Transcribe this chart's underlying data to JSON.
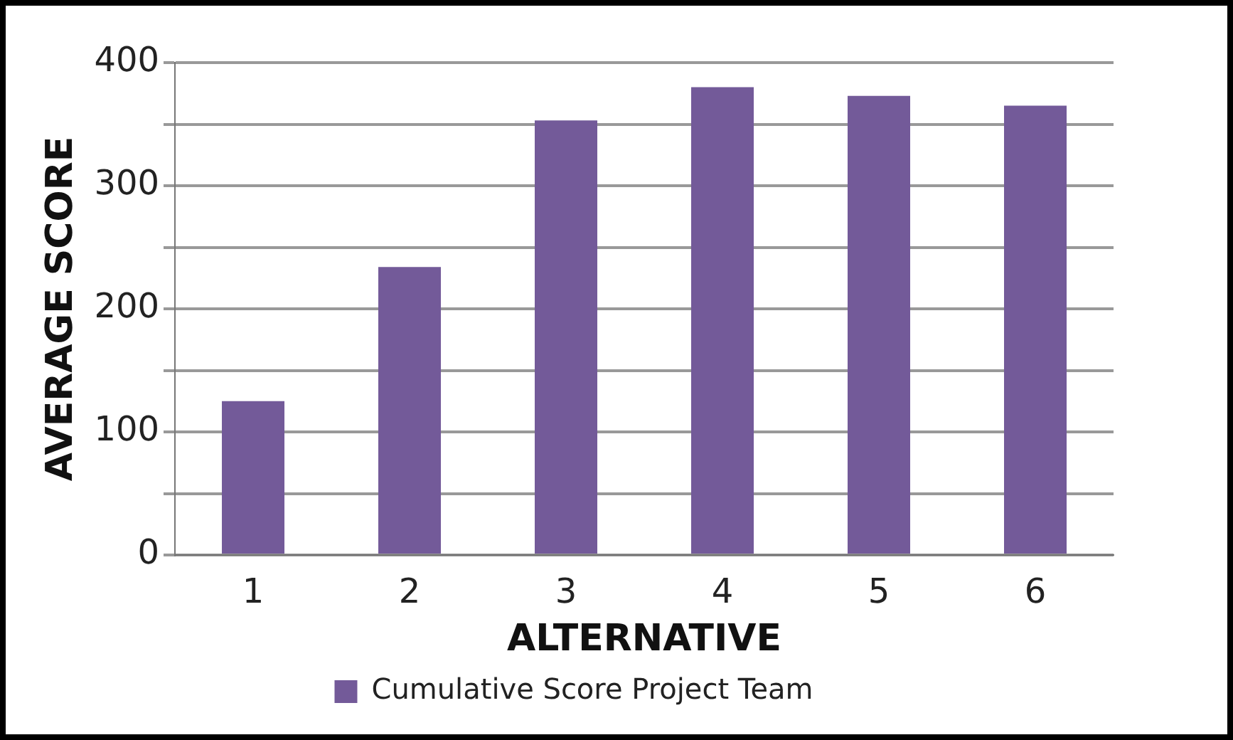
{
  "chart_data": {
    "type": "bar",
    "xlabel": "ALTERNATIVE",
    "ylabel": "AVERAGE SCORE",
    "categories": [
      "1",
      "2",
      "3",
      "4",
      "5",
      "6"
    ],
    "series": [
      {
        "name": "Cumulative Score Project Team",
        "color": "#735a99",
        "values": [
          125,
          234,
          353,
          380,
          373,
          365
        ]
      }
    ],
    "ylim": [
      0,
      400
    ],
    "yticks": [
      0,
      {
        "value": 50,
        "label": null
      },
      100,
      {
        "value": 150,
        "label": null
      },
      200,
      {
        "value": 250,
        "label": null
      },
      300,
      {
        "value": 350,
        "label": null
      },
      400
    ],
    "grid": "y",
    "legend": "bottom"
  }
}
